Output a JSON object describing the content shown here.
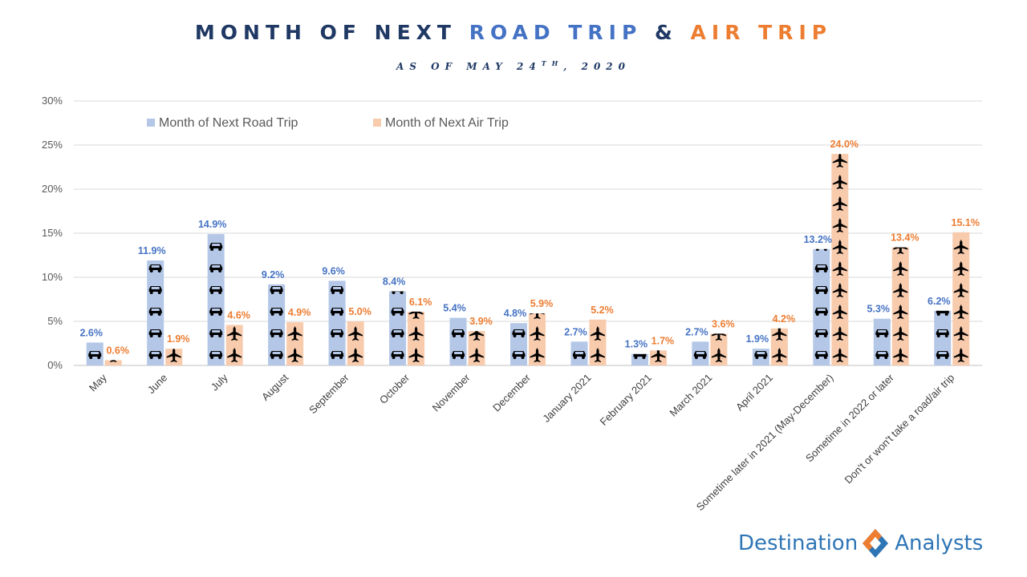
{
  "title": {
    "prefix": "MONTH OF NEXT",
    "road": "ROAD TRIP",
    "amp": "&",
    "air": "AIR TRIP"
  },
  "subtitle": {
    "before": "AS OF MAY 24",
    "sup": "TH",
    "after": ", 2020"
  },
  "colors": {
    "road": "#b4c7e7",
    "air": "#f8cbad",
    "road_label": "#4472c4",
    "air_label": "#ed7d31",
    "title": "#1f3864",
    "icon": "#000000"
  },
  "icons": {
    "road": "car-icon",
    "air": "airplane-icon"
  },
  "logo": {
    "left_text": "Destination",
    "right_text": "Analysts"
  },
  "chart_data": {
    "type": "bar",
    "categories": [
      "May",
      "June",
      "July",
      "August",
      "September",
      "October",
      "November",
      "December",
      "January 2021",
      "February 2021",
      "March 2021",
      "April 2021",
      "Sometime later in 2021 (May-December)",
      "Sometime in 2022 or later",
      "Don't or won't take a road/air trip"
    ],
    "series": [
      {
        "name": "Month of Next Road Trip",
        "values": [
          2.6,
          11.9,
          14.9,
          9.2,
          9.6,
          8.4,
          5.4,
          4.8,
          2.7,
          1.3,
          2.7,
          1.9,
          13.2,
          5.3,
          6.2
        ],
        "labels": [
          "2.6%",
          "11.9%",
          "14.9%",
          "9.2%",
          "9.6%",
          "8.4%",
          "5.4%",
          "4.8%",
          "2.7%",
          "1.3%",
          "2.7%",
          "1.9%",
          "13.2%",
          "5.3%",
          "6.2%"
        ]
      },
      {
        "name": "Month of Next Air Trip",
        "values": [
          0.6,
          1.9,
          4.6,
          4.9,
          5.0,
          6.1,
          3.9,
          5.9,
          5.2,
          1.7,
          3.6,
          4.2,
          24.0,
          13.4,
          15.1
        ],
        "labels": [
          "0.6%",
          "1.9%",
          "4.6%",
          "4.9%",
          "5.0%",
          "6.1%",
          "3.9%",
          "5.9%",
          "5.2%",
          "1.7%",
          "3.6%",
          "4.2%",
          "24.0%",
          "13.4%",
          "15.1%"
        ]
      }
    ],
    "ylim": [
      0,
      30
    ],
    "yticks": [
      "0%",
      "5%",
      "10%",
      "15%",
      "20%",
      "25%",
      "30%"
    ],
    "grid": true,
    "legend": "top-left"
  }
}
